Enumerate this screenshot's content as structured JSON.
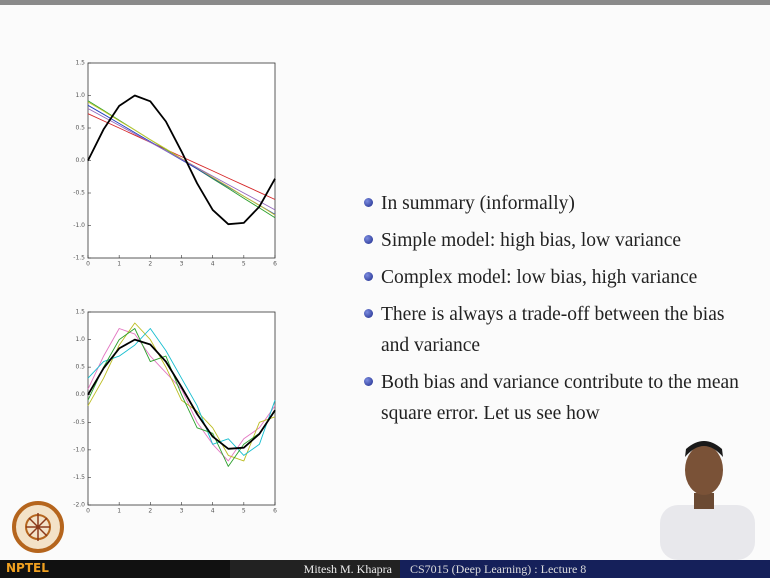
{
  "chart_data": [
    {
      "type": "line",
      "x": [
        0,
        0.5,
        1,
        1.5,
        2,
        2.5,
        3,
        3.5,
        4,
        4.5,
        5,
        5.5,
        6
      ],
      "xlim": [
        0,
        6
      ],
      "xticks": [
        0,
        1,
        2,
        3,
        4,
        5,
        6
      ],
      "ylim": [
        -1.5,
        1.5
      ],
      "yticks": [
        -1.5,
        {
          "value": -1,
          "label": "-1.0"
        },
        -0.5,
        {
          "value": 0,
          "label": "0.0"
        },
        0.5,
        {
          "value": 1,
          "label": "1.0"
        },
        1.5
      ],
      "series": [
        {
          "color": "#d62728",
          "values": [
            0.72,
            0.61,
            0.5,
            0.39,
            0.28,
            0.17,
            0.06,
            -0.05,
            -0.16,
            -0.27,
            -0.38,
            -0.49,
            -0.6
          ]
        },
        {
          "color": "#2ca02c",
          "values": [
            0.92,
            0.77,
            0.62,
            0.47,
            0.32,
            0.17,
            0.02,
            -0.13,
            -0.28,
            -0.43,
            -0.58,
            -0.73,
            -0.88
          ]
        },
        {
          "color": "#1f3fbf",
          "values": [
            0.85,
            0.71,
            0.57,
            0.43,
            0.29,
            0.15,
            0.01,
            -0.13,
            -0.27,
            -0.41,
            -0.55,
            -0.69,
            -0.83
          ]
        },
        {
          "color": "#c7c72a",
          "values": [
            0.9,
            0.76,
            0.61,
            0.47,
            0.32,
            0.18,
            0.03,
            -0.11,
            -0.26,
            -0.4,
            -0.55,
            -0.69,
            -0.84
          ]
        },
        {
          "color": "#9467bd",
          "values": [
            0.8,
            0.67,
            0.54,
            0.41,
            0.28,
            0.15,
            0.02,
            -0.11,
            -0.24,
            -0.37,
            -0.5,
            -0.63,
            -0.76
          ]
        },
        {
          "color": "#000000",
          "values": [
            0,
            0.48,
            0.84,
            1.0,
            0.91,
            0.6,
            0.14,
            -0.35,
            -0.76,
            -0.98,
            -0.96,
            -0.71,
            -0.28
          ]
        }
      ]
    },
    {
      "type": "line",
      "x": [
        0,
        0.5,
        1,
        1.5,
        2,
        2.5,
        3,
        3.5,
        4,
        4.5,
        5,
        5.5,
        6
      ],
      "xlim": [
        0,
        6
      ],
      "xticks": [
        0,
        1,
        2,
        3,
        4,
        5,
        6
      ],
      "ylim": [
        -2,
        1.5
      ],
      "yticks": [
        {
          "value": -2,
          "label": "-2.0"
        },
        -1.5,
        {
          "value": -1,
          "label": "-1.0"
        },
        -0.5,
        {
          "value": 0,
          "label": "0.0"
        },
        0.5,
        {
          "value": 1,
          "label": "1.0"
        },
        1.5
      ],
      "series": [
        {
          "color": "#e377c2",
          "values": [
            0.1,
            0.7,
            1.2,
            1.1,
            0.7,
            0.4,
            0.1,
            -0.5,
            -0.9,
            -1.2,
            -0.8,
            -0.6,
            -0.2
          ]
        },
        {
          "color": "#bcbd22",
          "values": [
            -0.2,
            0.3,
            0.9,
            1.3,
            1.0,
            0.5,
            -0.1,
            -0.3,
            -0.6,
            -1.1,
            -1.2,
            -0.5,
            -0.4
          ]
        },
        {
          "color": "#17becf",
          "values": [
            0.3,
            0.6,
            0.7,
            0.9,
            1.2,
            0.8,
            0.3,
            -0.2,
            -0.9,
            -0.8,
            -1.1,
            -0.9,
            -0.1
          ]
        },
        {
          "color": "#2ca02c",
          "values": [
            -0.1,
            0.5,
            1.0,
            1.2,
            0.6,
            0.7,
            0.0,
            -0.6,
            -0.7,
            -1.3,
            -0.9,
            -0.7,
            -0.3
          ]
        },
        {
          "color": "#000000",
          "values": [
            0,
            0.48,
            0.84,
            1.0,
            0.91,
            0.6,
            0.14,
            -0.35,
            -0.76,
            -0.98,
            -0.96,
            -0.71,
            -0.28
          ]
        }
      ]
    }
  ],
  "slide": {
    "bullets": [
      [
        "In summary (informally)"
      ],
      [
        "Simple model: high bias, low variance"
      ],
      [
        "Complex model: low bias, high variance"
      ],
      [
        "There is always a trade-off between the bias",
        "and variance"
      ],
      [
        "Both bias and variance contribute to the mean",
        "square error. Let us see how"
      ]
    ]
  },
  "footer": {
    "logo": "NPTEL",
    "author": "Mitesh M. Khapra",
    "course": "CS7015 (Deep Learning) : Lecture 8"
  }
}
